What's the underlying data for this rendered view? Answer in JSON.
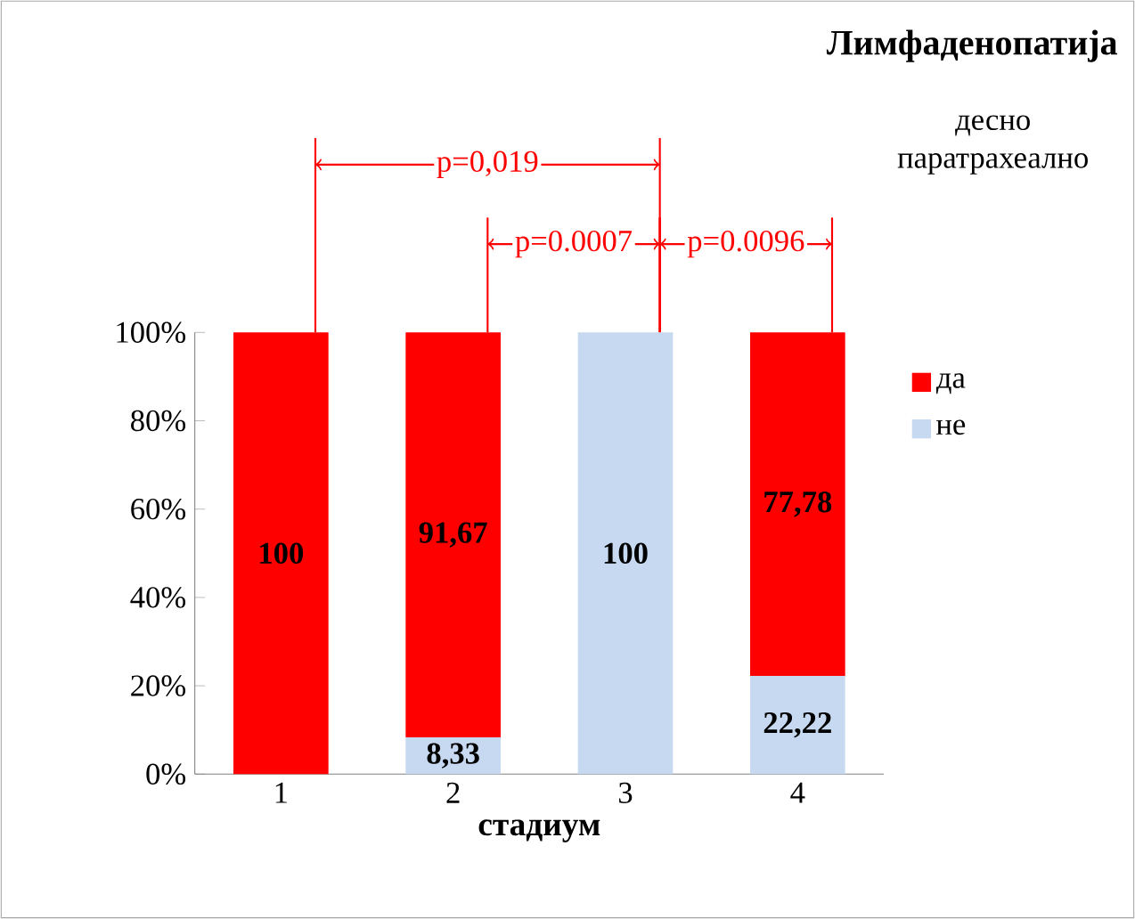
{
  "chart_data": {
    "type": "bar",
    "stacked": true,
    "title": "Лимфаденопатија",
    "legend_title": "десно паратрахеално",
    "xlabel": "стадиум",
    "categories": [
      "1",
      "2",
      "3",
      "4"
    ],
    "series": [
      {
        "name": "не",
        "color": "#c6d9f0",
        "values": [
          0,
          8.33,
          100,
          22.22
        ],
        "value_labels": [
          null,
          "8,33",
          "100",
          "22,22"
        ]
      },
      {
        "name": "да",
        "color": "#ff0000",
        "values": [
          100,
          91.67,
          0,
          77.78
        ],
        "value_labels": [
          "100",
          "91,67",
          null,
          "77,78"
        ]
      }
    ],
    "ylim": [
      0,
      100
    ],
    "yticks": [
      {
        "value": 0,
        "label": "0%"
      },
      {
        "value": 20,
        "label": "20%"
      },
      {
        "value": 40,
        "label": "40%"
      },
      {
        "value": 60,
        "label": "60%"
      },
      {
        "value": 80,
        "label": "80%"
      },
      {
        "value": 100,
        "label": "100%"
      }
    ],
    "legend": "right",
    "annotations": [
      "p=0,019",
      "p=0.0007",
      "p=0.0096"
    ]
  }
}
